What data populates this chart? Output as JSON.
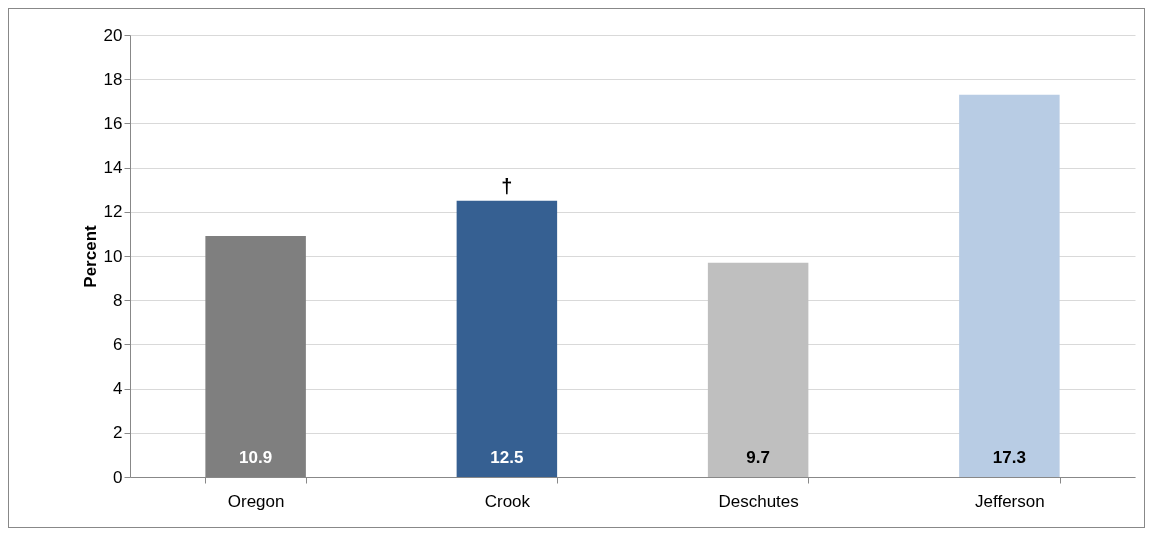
{
  "chart_data": {
    "type": "bar",
    "ylabel": "Percent",
    "categories": [
      "Oregon",
      "Crook",
      "Deschutes",
      "Jefferson"
    ],
    "values": [
      10.9,
      12.5,
      9.7,
      17.3
    ],
    "colors": [
      "#7f7f7f",
      "#366092",
      "#bfbfbf",
      "#b8cce4"
    ],
    "ylim": [
      0,
      20
    ],
    "yticks": [
      0,
      2,
      4,
      6,
      8,
      10,
      12,
      14,
      16,
      18,
      20
    ],
    "grid": "y",
    "data_labels": true,
    "annotations": [
      {
        "text": "†",
        "x": "Crook",
        "y": 12.5
      }
    ]
  }
}
